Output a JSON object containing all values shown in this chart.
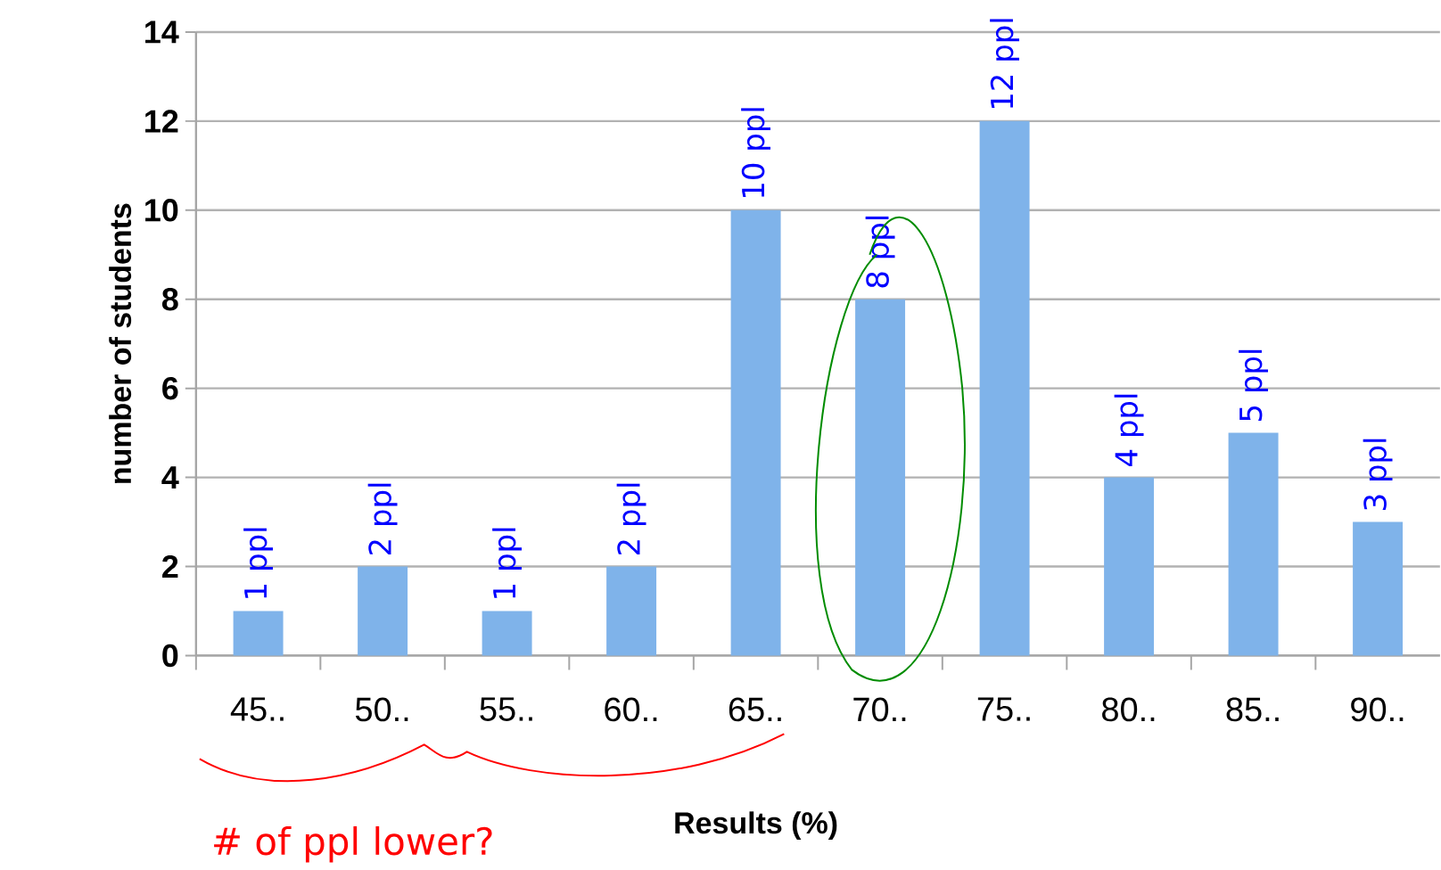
{
  "chart_data": {
    "type": "bar",
    "xlabel": "Results (%)",
    "ylabel": "number of students",
    "categories": [
      "45..",
      "50..",
      "55..",
      "60..",
      "65..",
      "70..",
      "75..",
      "80..",
      "85..",
      "90.."
    ],
    "values": [
      1,
      2,
      1,
      2,
      10,
      8,
      12,
      4,
      5,
      3
    ],
    "value_labels": [
      "1 ppl",
      "2 ppl",
      "1 ppl",
      "2 ppl",
      "10 ppl",
      "8 ppl",
      "12 ppl",
      "4 ppl",
      "5 ppl",
      "3 ppl"
    ],
    "color": "#7fb3ea",
    "ylim": [
      0,
      14
    ],
    "yticks": [
      0,
      2,
      4,
      6,
      8,
      10,
      12,
      14
    ],
    "grid": "y",
    "annotations": [
      "# of ppl lower?"
    ]
  }
}
